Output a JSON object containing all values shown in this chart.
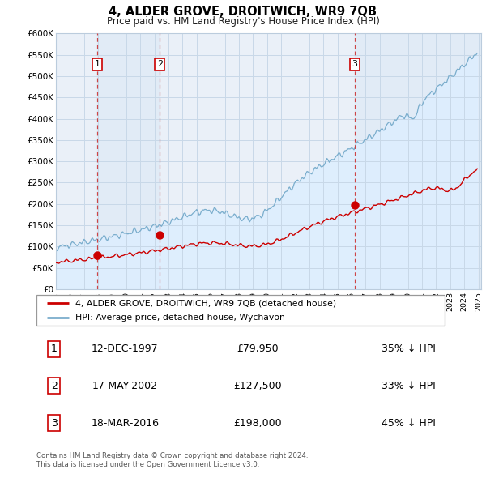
{
  "title": "4, ALDER GROVE, DROITWICH, WR9 7QB",
  "subtitle": "Price paid vs. HM Land Registry's House Price Index (HPI)",
  "ylim": [
    0,
    600000
  ],
  "yticks": [
    0,
    50000,
    100000,
    150000,
    200000,
    250000,
    300000,
    350000,
    400000,
    450000,
    500000,
    550000,
    600000
  ],
  "ytick_labels": [
    "£0",
    "£50K",
    "£100K",
    "£150K",
    "£200K",
    "£250K",
    "£300K",
    "£350K",
    "£400K",
    "£450K",
    "£500K",
    "£550K",
    "£600K"
  ],
  "xlim_start": 1995.3,
  "xlim_end": 2025.2,
  "sale_color": "#cc0000",
  "hpi_color": "#7aadcc",
  "hpi_fill_color": "#ddeeff",
  "grid_color": "#c8d8e8",
  "background_color": "#eaf0f8",
  "sale_dates_numeric": [
    1997.95,
    2002.38,
    2016.21
  ],
  "sale_prices": [
    79950,
    127500,
    198000
  ],
  "sale_labels": [
    "1",
    "2",
    "3"
  ],
  "vline_color": "#cc3333",
  "legend_label_red": "4, ALDER GROVE, DROITWICH, WR9 7QB (detached house)",
  "legend_label_blue": "HPI: Average price, detached house, Wychavon",
  "table_entries": [
    {
      "num": "1",
      "date": "12-DEC-1997",
      "price": "£79,950",
      "hpi": "35% ↓ HPI"
    },
    {
      "num": "2",
      "date": "17-MAY-2002",
      "price": "£127,500",
      "hpi": "33% ↓ HPI"
    },
    {
      "num": "3",
      "date": "18-MAR-2016",
      "price": "£198,000",
      "hpi": "45% ↓ HPI"
    }
  ],
  "footnote1": "Contains HM Land Registry data © Crown copyright and database right 2024.",
  "footnote2": "This data is licensed under the Open Government Licence v3.0."
}
